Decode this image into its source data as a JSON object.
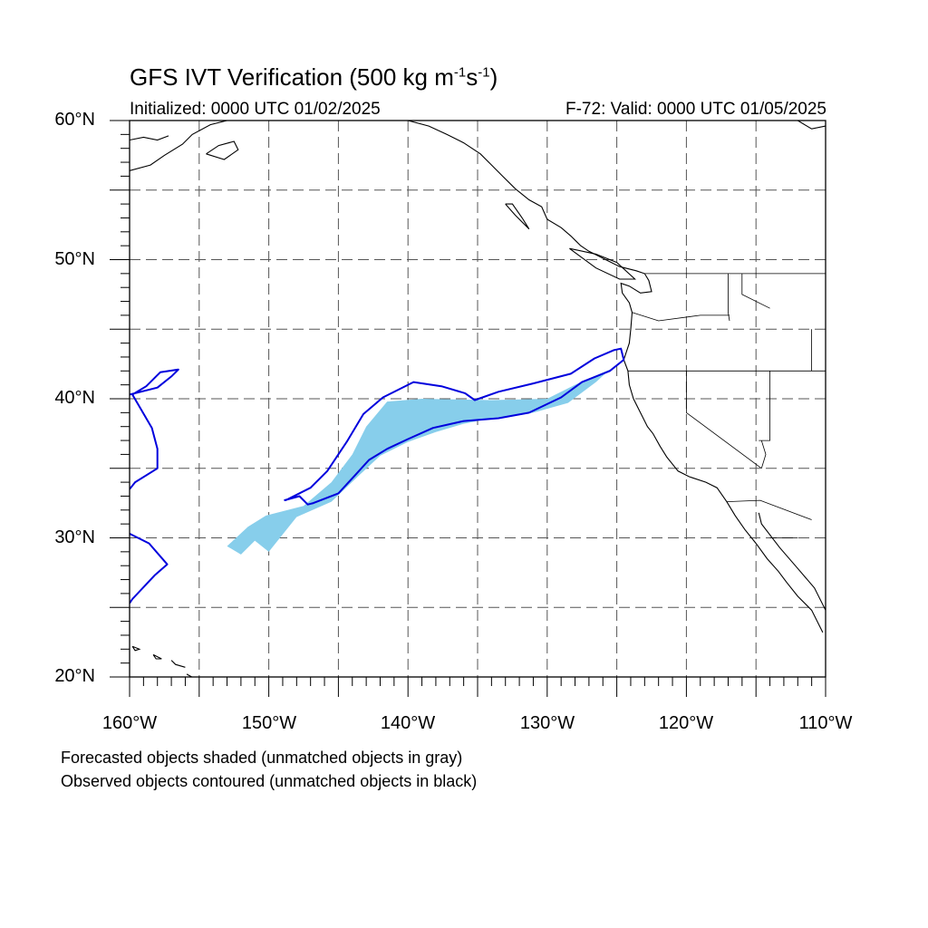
{
  "header": {
    "title_main": "GFS IVT Verification (500 kg m",
    "title_exp1": "-1",
    "title_mid": "s",
    "title_exp2": "-1",
    "title_end": ")",
    "initialized": "Initialized: 0000 UTC 01/02/2025",
    "valid": "F-72: Valid: 0000 UTC 01/05/2025"
  },
  "axes": {
    "lat_labels": [
      "60°N",
      "50°N",
      "40°N",
      "30°N",
      "20°N"
    ],
    "lon_labels": [
      "160°W",
      "150°W",
      "140°W",
      "130°W",
      "120°W",
      "110°W"
    ],
    "lat_range": [
      20,
      60
    ],
    "lon_range": [
      -160,
      -110
    ],
    "grid_spacing_deg": 5,
    "grid": true,
    "grid_style": "dashed"
  },
  "notes": {
    "forecast": "Forecasted objects shaded (unmatched objects in gray)",
    "observed": "Observed objects contoured (unmatched objects in black)"
  },
  "colors": {
    "forecast_fill": "#87ceeb",
    "observed_contour": "#0000dd",
    "coastline": "#000000"
  },
  "chart_data": {
    "type": "map",
    "threshold": "500 kg m-1 s-1",
    "forecast_object_shaded": {
      "color": "#87ceeb",
      "lonlat": [
        [
          -153.0,
          29.4
        ],
        [
          -151.5,
          30.8
        ],
        [
          -150.2,
          31.6
        ],
        [
          -147.5,
          32.3
        ],
        [
          -145.5,
          34.0
        ],
        [
          -144.0,
          36.0
        ],
        [
          -143.0,
          38.0
        ],
        [
          -141.5,
          39.8
        ],
        [
          -139.0,
          40.0
        ],
        [
          -134.0,
          39.9
        ],
        [
          -130.0,
          40.0
        ],
        [
          -128.0,
          41.0
        ],
        [
          -125.5,
          42.1
        ],
        [
          -126.5,
          41.2
        ],
        [
          -128.5,
          39.7
        ],
        [
          -131.0,
          39.0
        ],
        [
          -134.0,
          38.6
        ],
        [
          -136.0,
          38.2
        ],
        [
          -138.0,
          37.6
        ],
        [
          -140.0,
          36.9
        ],
        [
          -142.0,
          35.9
        ],
        [
          -143.5,
          34.5
        ],
        [
          -145.5,
          32.6
        ],
        [
          -148.0,
          31.5
        ],
        [
          -150.0,
          29.0
        ],
        [
          -151.0,
          29.8
        ],
        [
          -152.0,
          28.8
        ]
      ]
    },
    "observed_objects_contoured": [
      {
        "name": "matched-ar",
        "color": "#0000dd",
        "lonlat": [
          [
            -148.8,
            32.7
          ],
          [
            -147.0,
            33.6
          ],
          [
            -145.8,
            34.8
          ],
          [
            -144.4,
            36.9
          ],
          [
            -143.2,
            38.9
          ],
          [
            -141.8,
            40.1
          ],
          [
            -139.6,
            41.2
          ],
          [
            -137.6,
            40.9
          ],
          [
            -135.9,
            40.4
          ],
          [
            -135.2,
            39.9
          ],
          [
            -133.5,
            40.5
          ],
          [
            -131.0,
            41.1
          ],
          [
            -128.3,
            41.8
          ],
          [
            -126.6,
            42.9
          ],
          [
            -125.2,
            43.5
          ],
          [
            -124.7,
            43.6
          ],
          [
            -124.5,
            42.8
          ],
          [
            -125.5,
            42.0
          ],
          [
            -127.5,
            41.2
          ],
          [
            -129.0,
            40.1
          ],
          [
            -131.3,
            39.0
          ],
          [
            -133.5,
            38.6
          ],
          [
            -136.0,
            38.4
          ],
          [
            -138.2,
            37.9
          ],
          [
            -140.0,
            37.1
          ],
          [
            -141.5,
            36.4
          ],
          [
            -142.8,
            35.6
          ],
          [
            -143.8,
            34.5
          ],
          [
            -145.0,
            33.2
          ],
          [
            -146.8,
            32.5
          ],
          [
            -147.2,
            32.4
          ],
          [
            -147.8,
            33.0
          ],
          [
            -148.9,
            32.7
          ]
        ]
      },
      {
        "name": "west-edge-upper",
        "color": "#0000dd",
        "lonlat": [
          [
            -160.0,
            40.3
          ],
          [
            -158.0,
            40.8
          ],
          [
            -157.0,
            41.6
          ],
          [
            -156.5,
            42.1
          ],
          [
            -157.8,
            41.9
          ],
          [
            -158.8,
            40.9
          ],
          [
            -159.8,
            40.3
          ],
          [
            -158.4,
            37.9
          ],
          [
            -158.0,
            36.4
          ],
          [
            -158.0,
            35.0
          ],
          [
            -159.6,
            34.0
          ],
          [
            -160.0,
            33.5
          ]
        ]
      },
      {
        "name": "west-edge-lower",
        "color": "#0000dd",
        "lonlat": [
          [
            -160.0,
            30.3
          ],
          [
            -158.6,
            29.6
          ],
          [
            -157.3,
            28.1
          ],
          [
            -158.2,
            27.3
          ],
          [
            -159.8,
            25.6
          ],
          [
            -160.0,
            25.3
          ]
        ]
      }
    ]
  }
}
